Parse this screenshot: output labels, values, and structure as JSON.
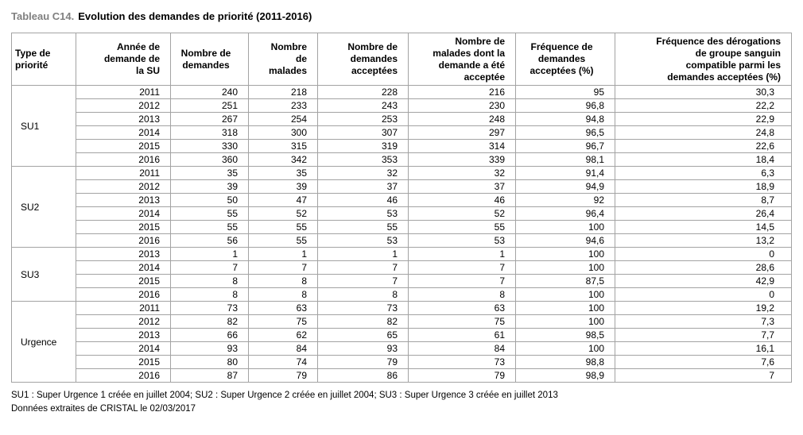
{
  "title": {
    "prefix": "Tableau C14.",
    "text": "Evolution des demandes de priorité (2011-2016)"
  },
  "colors": {
    "title_prefix": "#808080",
    "table_border": "#a3a3a3",
    "text": "#000000",
    "background": "#ffffff"
  },
  "table": {
    "columns": [
      {
        "label": "Type de\npriorité",
        "align": "left"
      },
      {
        "label": "Année de\ndemande de\nla SU",
        "align": "right"
      },
      {
        "label": "Nombre de\ndemandes",
        "align": "center"
      },
      {
        "label": "Nombre\nde\nmalades",
        "align": "right"
      },
      {
        "label": "Nombre de\ndemandes\nacceptées",
        "align": "right"
      },
      {
        "label": "Nombre de\nmalades dont la\ndemande a été\nacceptée",
        "align": "right"
      },
      {
        "label": "Fréquence de\ndemandes\nacceptées (%)",
        "align": "center"
      },
      {
        "label": "Fréquence des dérogations\nde groupe sanguin\ncompatible parmi les\ndemandes acceptées (%)",
        "align": "right"
      }
    ],
    "groups": [
      {
        "type": "SU1",
        "rows": [
          [
            "2011",
            "240",
            "218",
            "228",
            "216",
            "95",
            "30,3"
          ],
          [
            "2012",
            "251",
            "233",
            "243",
            "230",
            "96,8",
            "22,2"
          ],
          [
            "2013",
            "267",
            "254",
            "253",
            "248",
            "94,8",
            "22,9"
          ],
          [
            "2014",
            "318",
            "300",
            "307",
            "297",
            "96,5",
            "24,8"
          ],
          [
            "2015",
            "330",
            "315",
            "319",
            "314",
            "96,7",
            "22,6"
          ],
          [
            "2016",
            "360",
            "342",
            "353",
            "339",
            "98,1",
            "18,4"
          ]
        ]
      },
      {
        "type": "SU2",
        "rows": [
          [
            "2011",
            "35",
            "35",
            "32",
            "32",
            "91,4",
            "6,3"
          ],
          [
            "2012",
            "39",
            "39",
            "37",
            "37",
            "94,9",
            "18,9"
          ],
          [
            "2013",
            "50",
            "47",
            "46",
            "46",
            "92",
            "8,7"
          ],
          [
            "2014",
            "55",
            "52",
            "53",
            "52",
            "96,4",
            "26,4"
          ],
          [
            "2015",
            "55",
            "55",
            "55",
            "55",
            "100",
            "14,5"
          ],
          [
            "2016",
            "56",
            "55",
            "53",
            "53",
            "94,6",
            "13,2"
          ]
        ]
      },
      {
        "type": "SU3",
        "rows": [
          [
            "2013",
            "1",
            "1",
            "1",
            "1",
            "100",
            "0"
          ],
          [
            "2014",
            "7",
            "7",
            "7",
            "7",
            "100",
            "28,6"
          ],
          [
            "2015",
            "8",
            "8",
            "7",
            "7",
            "87,5",
            "42,9"
          ],
          [
            "2016",
            "8",
            "8",
            "8",
            "8",
            "100",
            "0"
          ]
        ]
      },
      {
        "type": "Urgence",
        "rows": [
          [
            "2011",
            "73",
            "63",
            "73",
            "63",
            "100",
            "19,2"
          ],
          [
            "2012",
            "82",
            "75",
            "82",
            "75",
            "100",
            "7,3"
          ],
          [
            "2013",
            "66",
            "62",
            "65",
            "61",
            "98,5",
            "7,7"
          ],
          [
            "2014",
            "93",
            "84",
            "93",
            "84",
            "100",
            "16,1"
          ],
          [
            "2015",
            "80",
            "74",
            "79",
            "73",
            "98,8",
            "7,6"
          ],
          [
            "2016",
            "87",
            "79",
            "86",
            "79",
            "98,9",
            "7"
          ]
        ]
      }
    ]
  },
  "footnotes": [
    "SU1 : Super Urgence 1 créée en juillet 2004; SU2 : Super Urgence 2 créée en juillet 2004; SU3 : Super Urgence 3 créée en juillet 2013",
    "Données extraites de CRISTAL le 02/03/2017"
  ]
}
